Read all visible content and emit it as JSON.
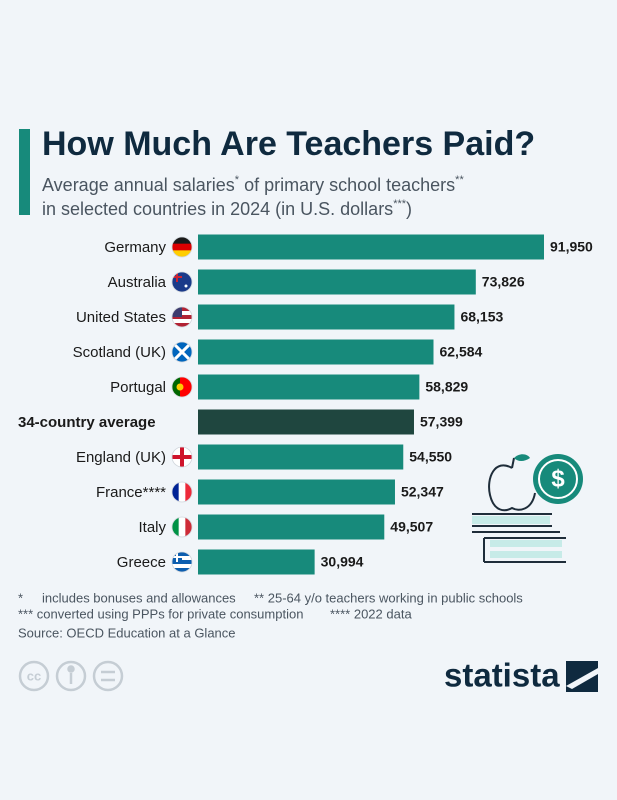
{
  "chart_data": {
    "type": "bar",
    "orientation": "horizontal",
    "title": "How Much Are Teachers Paid?",
    "subtitle": [
      [
        "Average annual salaries",
        "*",
        " of primary school teachers",
        "**"
      ],
      [
        "in selected countries in 2024 (in U.S. dollars",
        "***",
        ")"
      ]
    ],
    "categories": [
      "Germany",
      "Australia",
      "United States",
      "Scotland (UK)",
      "Portugal",
      "34-country average",
      "England (UK)",
      "France****",
      "Italy",
      "Greece"
    ],
    "values": [
      91950,
      73826,
      68153,
      62584,
      58829,
      57399,
      54550,
      52347,
      49507,
      30994
    ],
    "value_labels": [
      "91,950",
      "73,826",
      "68,153",
      "62,584",
      "58,829",
      "57,399",
      "54,550",
      "52,347",
      "49,507",
      "30,994"
    ],
    "colors": [
      "#178a7b",
      "#178a7b",
      "#178a7b",
      "#178a7b",
      "#178a7b",
      "#1f463f",
      "#178a7b",
      "#178a7b",
      "#178a7b",
      "#178a7b"
    ],
    "notes": [
      "*",
      "includes bonuses and allowances",
      "** 25-64 y/o teachers working in public schools",
      "*** converted using PPPs for private consumption",
      "**** 2022 data"
    ],
    "source": "Source: OECD Education at a Glance",
    "license": "cc",
    "brand": "statista"
  }
}
